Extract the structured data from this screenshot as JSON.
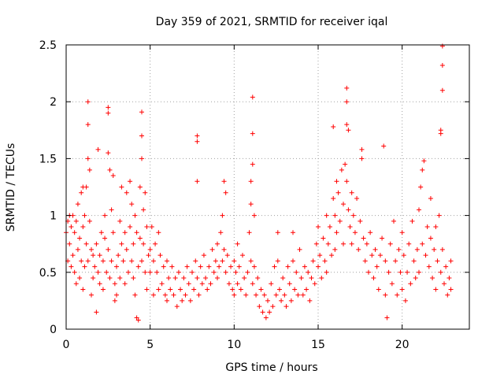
{
  "chart_data": {
    "type": "scatter",
    "title": "Day 359 of 2021, SRMTID for receiver iqal",
    "xlabel": "GPS time / hours",
    "ylabel": "SRMTID / TECUs",
    "xlim": [
      0,
      24
    ],
    "ylim": [
      0,
      2.5
    ],
    "xticks": [
      0,
      5,
      10,
      15,
      20
    ],
    "xtick_labels": [
      "0",
      "5",
      "10",
      "15",
      "20"
    ],
    "yticks": [
      0,
      0.5,
      1,
      1.5,
      2,
      2.5
    ],
    "ytick_labels": [
      "0",
      "0.5",
      "1",
      "1.5",
      "2",
      "2.5"
    ],
    "grid": true,
    "marker": "+",
    "marker_color": "#ff0000",
    "series": [
      {
        "name": "SRMTID",
        "points": [
          [
            0.0,
            0.85
          ],
          [
            0.1,
            0.95
          ],
          [
            0.1,
            0.6
          ],
          [
            0.2,
            1.0
          ],
          [
            0.2,
            0.75
          ],
          [
            0.3,
            0.9
          ],
          [
            0.3,
            0.55
          ],
          [
            0.4,
            1.0
          ],
          [
            0.4,
            0.65
          ],
          [
            0.5,
            0.85
          ],
          [
            0.5,
            0.5
          ],
          [
            0.6,
            0.95
          ],
          [
            0.6,
            0.4
          ],
          [
            0.7,
            0.7
          ],
          [
            0.7,
            1.1
          ],
          [
            0.8,
            0.8
          ],
          [
            0.8,
            0.45
          ],
          [
            0.9,
            1.2
          ],
          [
            0.9,
            0.6
          ],
          [
            1.0,
            1.25
          ],
          [
            1.0,
            0.9
          ],
          [
            1.0,
            0.35
          ],
          [
            1.1,
            1.0
          ],
          [
            1.1,
            0.55
          ],
          [
            1.2,
            1.25
          ],
          [
            1.2,
            0.75
          ],
          [
            1.3,
            1.5
          ],
          [
            1.3,
            1.8
          ],
          [
            1.3,
            2.0
          ],
          [
            1.3,
            0.6
          ],
          [
            1.4,
            1.4
          ],
          [
            1.4,
            0.95
          ],
          [
            1.5,
            0.7
          ],
          [
            1.5,
            0.3
          ],
          [
            1.6,
            0.65
          ],
          [
            1.6,
            0.45
          ],
          [
            1.7,
            0.55
          ],
          [
            1.8,
            0.15
          ],
          [
            1.8,
            0.75
          ],
          [
            1.9,
            1.58
          ],
          [
            1.9,
            0.5
          ],
          [
            2.0,
            0.65
          ],
          [
            2.0,
            0.4
          ],
          [
            2.1,
            0.85
          ],
          [
            2.2,
            0.6
          ],
          [
            2.2,
            0.35
          ],
          [
            2.3,
            0.8
          ],
          [
            2.3,
            1.0
          ],
          [
            2.4,
            0.5
          ],
          [
            2.5,
            1.95
          ],
          [
            2.5,
            1.9
          ],
          [
            2.5,
            1.55
          ],
          [
            2.5,
            0.7
          ],
          [
            2.6,
            1.4
          ],
          [
            2.6,
            0.45
          ],
          [
            2.7,
            1.05
          ],
          [
            2.7,
            0.6
          ],
          [
            2.8,
            1.35
          ],
          [
            2.8,
            0.85
          ],
          [
            2.9,
            0.4
          ],
          [
            2.9,
            0.25
          ],
          [
            3.0,
            0.55
          ],
          [
            3.0,
            0.3
          ],
          [
            3.1,
            0.65
          ],
          [
            3.2,
            0.95
          ],
          [
            3.2,
            0.45
          ],
          [
            3.3,
            1.25
          ],
          [
            3.3,
            0.75
          ],
          [
            3.4,
            0.6
          ],
          [
            3.5,
            0.85
          ],
          [
            3.5,
            0.4
          ],
          [
            3.6,
            1.2
          ],
          [
            3.6,
            0.7
          ],
          [
            3.7,
            0.5
          ],
          [
            3.8,
            1.3
          ],
          [
            3.8,
            0.9
          ],
          [
            3.9,
            1.1
          ],
          [
            3.9,
            0.6
          ],
          [
            4.0,
            0.75
          ],
          [
            4.0,
            0.45
          ],
          [
            4.1,
            1.0
          ],
          [
            4.1,
            0.3
          ],
          [
            4.2,
            0.85
          ],
          [
            4.2,
            0.1
          ],
          [
            4.3,
            0.55
          ],
          [
            4.3,
            0.08
          ],
          [
            4.4,
            1.25
          ],
          [
            4.4,
            0.8
          ],
          [
            4.5,
            1.5
          ],
          [
            4.5,
            1.7
          ],
          [
            4.5,
            1.91
          ],
          [
            4.5,
            0.6
          ],
          [
            4.6,
            1.05
          ],
          [
            4.6,
            0.75
          ],
          [
            4.7,
            1.2
          ],
          [
            4.7,
            0.5
          ],
          [
            4.8,
            0.9
          ],
          [
            4.8,
            0.35
          ],
          [
            4.9,
            0.65
          ],
          [
            5.0,
            0.7
          ],
          [
            5.0,
            0.5
          ],
          [
            5.1,
            0.9
          ],
          [
            5.2,
            0.6
          ],
          [
            5.2,
            0.3
          ],
          [
            5.3,
            0.75
          ],
          [
            5.4,
            0.5
          ],
          [
            5.5,
            0.85
          ],
          [
            5.5,
            0.35
          ],
          [
            5.6,
            0.65
          ],
          [
            5.7,
            0.4
          ],
          [
            5.8,
            0.55
          ],
          [
            5.9,
            0.3
          ],
          [
            6.0,
            0.6
          ],
          [
            6.0,
            0.25
          ],
          [
            6.1,
            0.45
          ],
          [
            6.2,
            0.35
          ],
          [
            6.3,
            0.55
          ],
          [
            6.4,
            0.3
          ],
          [
            6.5,
            0.45
          ],
          [
            6.6,
            0.2
          ],
          [
            6.7,
            0.5
          ],
          [
            6.8,
            0.35
          ],
          [
            6.9,
            0.25
          ],
          [
            7.0,
            0.45
          ],
          [
            7.1,
            0.3
          ],
          [
            7.2,
            0.55
          ],
          [
            7.3,
            0.4
          ],
          [
            7.4,
            0.25
          ],
          [
            7.5,
            0.5
          ],
          [
            7.6,
            0.35
          ],
          [
            7.7,
            0.6
          ],
          [
            7.8,
            1.3
          ],
          [
            7.8,
            1.7
          ],
          [
            7.8,
            1.65
          ],
          [
            7.8,
            0.45
          ],
          [
            7.9,
            0.3
          ],
          [
            8.0,
            0.55
          ],
          [
            8.1,
            0.4
          ],
          [
            8.2,
            0.65
          ],
          [
            8.3,
            0.45
          ],
          [
            8.4,
            0.35
          ],
          [
            8.5,
            0.55
          ],
          [
            8.6,
            0.4
          ],
          [
            8.7,
            0.7
          ],
          [
            8.8,
            0.5
          ],
          [
            8.9,
            0.6
          ],
          [
            9.0,
            0.75
          ],
          [
            9.0,
            0.45
          ],
          [
            9.1,
            0.55
          ],
          [
            9.2,
            0.85
          ],
          [
            9.3,
            1.0
          ],
          [
            9.3,
            0.6
          ],
          [
            9.4,
            1.3
          ],
          [
            9.4,
            0.7
          ],
          [
            9.5,
            1.2
          ],
          [
            9.5,
            0.5
          ],
          [
            9.6,
            0.65
          ],
          [
            9.7,
            0.4
          ],
          [
            9.8,
            0.55
          ],
          [
            9.9,
            0.35
          ],
          [
            10.0,
            0.6
          ],
          [
            10.0,
            0.3
          ],
          [
            10.1,
            0.5
          ],
          [
            10.2,
            0.75
          ],
          [
            10.2,
            0.4
          ],
          [
            10.3,
            0.55
          ],
          [
            10.4,
            0.35
          ],
          [
            10.5,
            0.65
          ],
          [
            10.6,
            0.45
          ],
          [
            10.7,
            0.3
          ],
          [
            10.8,
            0.5
          ],
          [
            10.9,
            0.85
          ],
          [
            11.0,
            1.1
          ],
          [
            11.0,
            1.3
          ],
          [
            11.0,
            0.6
          ],
          [
            11.1,
            1.72
          ],
          [
            11.1,
            2.04
          ],
          [
            11.1,
            1.45
          ],
          [
            11.1,
            0.4
          ],
          [
            11.2,
            1.0
          ],
          [
            11.2,
            0.55
          ],
          [
            11.3,
            0.3
          ],
          [
            11.4,
            0.45
          ],
          [
            11.5,
            0.2
          ],
          [
            11.6,
            0.35
          ],
          [
            11.7,
            0.15
          ],
          [
            11.8,
            0.3
          ],
          [
            11.9,
            0.1
          ],
          [
            12.0,
            0.25
          ],
          [
            12.1,
            0.15
          ],
          [
            12.2,
            0.4
          ],
          [
            12.3,
            0.2
          ],
          [
            12.4,
            0.55
          ],
          [
            12.5,
            0.3
          ],
          [
            12.6,
            0.85
          ],
          [
            12.6,
            0.6
          ],
          [
            12.7,
            0.35
          ],
          [
            12.8,
            0.25
          ],
          [
            12.9,
            0.45
          ],
          [
            13.0,
            0.3
          ],
          [
            13.1,
            0.2
          ],
          [
            13.2,
            0.55
          ],
          [
            13.3,
            0.4
          ],
          [
            13.4,
            0.25
          ],
          [
            13.5,
            0.6
          ],
          [
            13.5,
            0.85
          ],
          [
            13.6,
            0.35
          ],
          [
            13.7,
            0.5
          ],
          [
            13.8,
            0.3
          ],
          [
            13.9,
            0.7
          ],
          [
            14.0,
            0.45
          ],
          [
            14.1,
            0.3
          ],
          [
            14.2,
            0.55
          ],
          [
            14.3,
            0.35
          ],
          [
            14.4,
            0.5
          ],
          [
            14.5,
            0.25
          ],
          [
            14.6,
            0.45
          ],
          [
            14.7,
            0.6
          ],
          [
            14.8,
            0.4
          ],
          [
            14.9,
            0.75
          ],
          [
            15.0,
            0.55
          ],
          [
            15.0,
            0.9
          ],
          [
            15.1,
            0.65
          ],
          [
            15.2,
            0.45
          ],
          [
            15.3,
            0.8
          ],
          [
            15.4,
            0.6
          ],
          [
            15.5,
            1.0
          ],
          [
            15.5,
            0.5
          ],
          [
            15.6,
            0.75
          ],
          [
            15.7,
            0.9
          ],
          [
            15.8,
            0.65
          ],
          [
            15.9,
            1.15
          ],
          [
            15.9,
            1.78
          ],
          [
            16.0,
            1.0
          ],
          [
            16.0,
            0.7
          ],
          [
            16.1,
            1.3
          ],
          [
            16.1,
            0.85
          ],
          [
            16.2,
            1.2
          ],
          [
            16.3,
            0.95
          ],
          [
            16.4,
            1.4
          ],
          [
            16.5,
            1.1
          ],
          [
            16.5,
            0.75
          ],
          [
            16.6,
            1.45
          ],
          [
            16.7,
            1.8
          ],
          [
            16.7,
            2.0
          ],
          [
            16.7,
            2.12
          ],
          [
            16.7,
            1.3
          ],
          [
            16.8,
            1.75
          ],
          [
            16.8,
            1.05
          ],
          [
            16.9,
            0.9
          ],
          [
            17.0,
            1.2
          ],
          [
            17.0,
            0.75
          ],
          [
            17.1,
            1.0
          ],
          [
            17.2,
            0.85
          ],
          [
            17.3,
            1.15
          ],
          [
            17.4,
            0.7
          ],
          [
            17.5,
            0.95
          ],
          [
            17.6,
            1.58
          ],
          [
            17.6,
            1.5
          ],
          [
            17.7,
            0.8
          ],
          [
            17.8,
            0.6
          ],
          [
            17.9,
            0.75
          ],
          [
            18.0,
            0.5
          ],
          [
            18.1,
            0.85
          ],
          [
            18.2,
            0.65
          ],
          [
            18.3,
            0.45
          ],
          [
            18.4,
            0.7
          ],
          [
            18.5,
            0.55
          ],
          [
            18.6,
            0.35
          ],
          [
            18.7,
            0.65
          ],
          [
            18.8,
            0.8
          ],
          [
            18.9,
            1.61
          ],
          [
            19.0,
            0.6
          ],
          [
            19.0,
            0.3
          ],
          [
            19.1,
            0.1
          ],
          [
            19.2,
            0.5
          ],
          [
            19.3,
            0.75
          ],
          [
            19.4,
            0.4
          ],
          [
            19.5,
            0.95
          ],
          [
            19.6,
            0.6
          ],
          [
            19.7,
            0.3
          ],
          [
            19.8,
            0.7
          ],
          [
            19.9,
            0.5
          ],
          [
            20.0,
            0.85
          ],
          [
            20.0,
            0.35
          ],
          [
            20.1,
            0.65
          ],
          [
            20.2,
            0.25
          ],
          [
            20.3,
            0.5
          ],
          [
            20.4,
            0.75
          ],
          [
            20.5,
            0.4
          ],
          [
            20.6,
            0.95
          ],
          [
            20.7,
            0.6
          ],
          [
            20.8,
            0.45
          ],
          [
            20.9,
            0.7
          ],
          [
            21.0,
            1.05
          ],
          [
            21.0,
            0.5
          ],
          [
            21.1,
            1.25
          ],
          [
            21.2,
            1.4
          ],
          [
            21.2,
            0.75
          ],
          [
            21.3,
            1.48
          ],
          [
            21.4,
            0.65
          ],
          [
            21.5,
            0.9
          ],
          [
            21.6,
            0.55
          ],
          [
            21.7,
            1.15
          ],
          [
            21.7,
            0.8
          ],
          [
            21.8,
            0.45
          ],
          [
            21.9,
            0.7
          ],
          [
            22.0,
            0.9
          ],
          [
            22.0,
            0.35
          ],
          [
            22.1,
            0.6
          ],
          [
            22.2,
            1.0
          ],
          [
            22.3,
            1.72
          ],
          [
            22.3,
            1.75
          ],
          [
            22.3,
            0.5
          ],
          [
            22.4,
            2.1
          ],
          [
            22.4,
            2.32
          ],
          [
            22.4,
            2.49
          ],
          [
            22.4,
            0.7
          ],
          [
            22.5,
            0.4
          ],
          [
            22.6,
            0.55
          ],
          [
            22.7,
            0.3
          ],
          [
            22.8,
            0.45
          ],
          [
            22.9,
            0.6
          ],
          [
            22.9,
            0.35
          ]
        ]
      }
    ]
  }
}
